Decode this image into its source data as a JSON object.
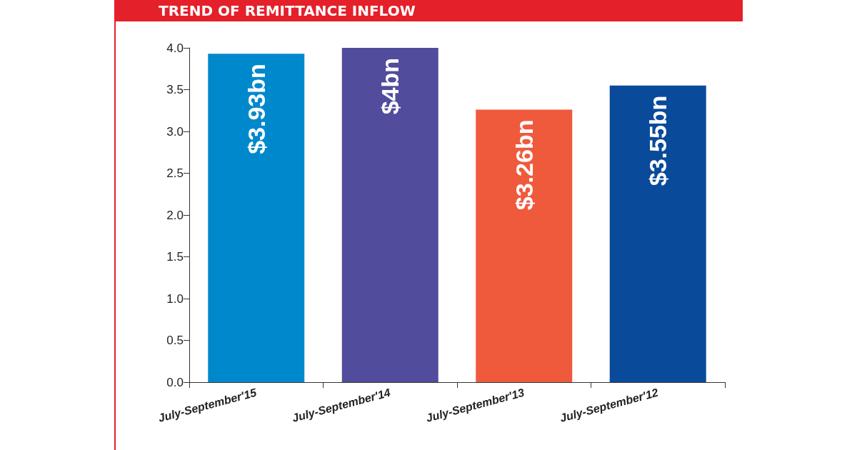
{
  "chart_data": {
    "type": "bar",
    "title": "TREND OF REMITTANCE INFLOW",
    "categories": [
      "July-September'15",
      "July-September'14",
      "July-September'13",
      "July-September'12"
    ],
    "values": [
      3.93,
      4,
      3.26,
      3.55
    ],
    "colors": [
      "#0088cc",
      "#524c9c",
      "#ef5a3c",
      "#0a4a9a"
    ],
    "value_labels": [
      "$3.93bn",
      "$4bn",
      "$3.26bn",
      "$3.55bn"
    ],
    "ylim": [
      0,
      4
    ],
    "yticks": [
      {
        "value": 0,
        "label": "0.0"
      },
      {
        "value": 0.5,
        "label": "0.5"
      },
      {
        "value": 1,
        "label": "1.0"
      },
      {
        "value": 1.5,
        "label": "1.5"
      },
      {
        "value": 2,
        "label": "2.0"
      },
      {
        "value": 2.5,
        "label": "2.5"
      },
      {
        "value": 3,
        "label": "3.0"
      },
      {
        "value": 3.5,
        "label": "3.5"
      },
      {
        "value": 4,
        "label": "4.0"
      }
    ],
    "grid": false
  }
}
